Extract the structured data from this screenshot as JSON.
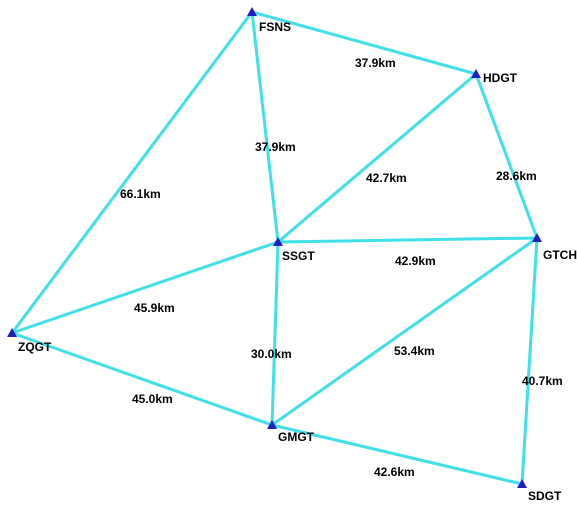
{
  "colors": {
    "link": "#40e0e8",
    "marker": "#2020c0",
    "text": "#000000",
    "background": "#ffffff"
  },
  "marker_icon": "triangle-icon",
  "stations": [
    {
      "id": "FSNC",
      "label": "FSNS"
    },
    {
      "id": "HDGT",
      "label": "HDGT"
    },
    {
      "id": "SSGT",
      "label": "SSGT"
    },
    {
      "id": "GTCH",
      "label": "GTCH"
    },
    {
      "id": "ZQGT",
      "label": "ZQGT"
    },
    {
      "id": "GMGT",
      "label": "GMGT"
    },
    {
      "id": "SDGT",
      "label": "SDGT"
    }
  ],
  "links": [
    {
      "from": "FSNC",
      "to": "HDGT",
      "distance": "37.9km"
    },
    {
      "from": "FSNC",
      "to": "SSGT",
      "distance": "37.9km"
    },
    {
      "from": "FSNC",
      "to": "ZQGT",
      "distance": "66.1km"
    },
    {
      "from": "HDGT",
      "to": "SSGT",
      "distance": "42.7km"
    },
    {
      "from": "HDGT",
      "to": "GTCH",
      "distance": "28.6km"
    },
    {
      "from": "SSGT",
      "to": "GTCH",
      "distance": "42.9km"
    },
    {
      "from": "SSGT",
      "to": "ZQGT",
      "distance": "45.9km"
    },
    {
      "from": "SSGT",
      "to": "GMGT",
      "distance": "30.0km"
    },
    {
      "from": "GTCH",
      "to": "GMGT",
      "distance": "53.4km"
    },
    {
      "from": "GTCH",
      "to": "SDGT",
      "distance": "40.7km"
    },
    {
      "from": "ZQGT",
      "to": "GMGT",
      "distance": "45.0km"
    },
    {
      "from": "GMGT",
      "to": "SDGT",
      "distance": "42.6km"
    }
  ]
}
